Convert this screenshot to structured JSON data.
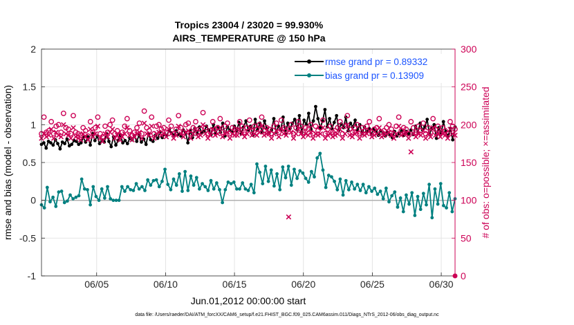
{
  "chart_data": {
    "type": "line",
    "title": "Tropics 23004 / 23020 = 99.930%",
    "subtitle": "AIRS_TEMPERATURE @ 150 hPa",
    "xlabel": "Jun.01,2012 00:00:00 start",
    "ylabel_left": "rmse and bias (model - observation)",
    "ylabel_right": "# of obs: o=possible; ×=assimilated",
    "xlim": [
      1,
      31
    ],
    "ylim_left": [
      -1,
      2
    ],
    "ylim_right": [
      0,
      300
    ],
    "x_ticks": [
      5,
      10,
      15,
      20,
      25,
      30
    ],
    "x_tick_labels": [
      "06/05",
      "06/10",
      "06/15",
      "06/20",
      "06/25",
      "06/30"
    ],
    "y_left_ticks": [
      "-1",
      "-0.5",
      "0",
      "0.5",
      "1",
      "1.5",
      "2"
    ],
    "y_right_ticks": [
      "0",
      "50",
      "100",
      "150",
      "200",
      "250",
      "300"
    ],
    "legend_location": "top-right",
    "series": [
      {
        "name": "rmse grand pr = 0.89332",
        "color": "#000000",
        "axis": "left",
        "values": [
          0.74,
          0.76,
          0.69,
          0.78,
          0.76,
          0.73,
          0.8,
          0.75,
          0.68,
          0.77,
          0.75,
          0.81,
          0.72,
          0.74,
          0.79,
          0.78,
          0.74,
          0.76,
          0.83,
          0.77,
          0.84,
          0.73,
          0.88,
          0.79,
          0.85,
          0.75,
          0.8,
          0.77,
          0.88,
          0.78,
          0.71,
          0.84,
          0.73,
          0.79,
          0.86,
          0.76,
          0.79,
          0.75,
          0.82,
          0.8,
          0.85,
          0.78,
          0.86,
          0.77,
          0.81,
          0.74,
          0.88,
          0.8,
          0.78,
          0.86,
          0.82,
          0.9,
          0.83,
          0.87,
          0.86,
          0.93,
          0.89,
          0.86,
          0.92,
          0.87,
          0.85,
          0.93,
          0.9,
          0.76,
          0.92,
          0.83,
          0.95,
          0.88,
          0.97,
          0.89,
          0.91,
          0.98,
          0.93,
          0.87,
          1.0,
          0.89,
          0.96,
          0.9,
          1.02,
          0.85,
          0.97,
          0.93,
          0.9,
          0.98,
          0.92,
          1.03,
          0.88,
          0.97,
          1.05,
          0.93,
          0.98,
          0.86,
          1.07,
          0.93,
          1.02,
          0.9,
          1.05,
          0.95,
          0.89,
          0.93,
          1.08,
          0.9,
          0.98,
          0.93,
          1.1,
          0.88,
          1.02,
          0.95,
          1.02,
          1.07,
          0.93,
          1.12,
          0.9,
          1.06,
          1.0,
          1.15,
          0.94,
          1.05,
          1.24,
          1.08,
          0.96,
          1.05,
          1.2,
          0.97,
          1.08,
          0.95,
          1.03,
          1.12,
          0.93,
          1.01,
          0.96,
          1.1,
          0.92,
          1.02,
          0.97,
          1.06,
          0.93,
          1.0,
          0.88,
          0.97,
          0.91,
          0.95,
          0.88,
          0.94,
          0.92,
          0.86,
          0.92,
          0.89,
          0.85,
          0.9,
          0.87,
          0.83,
          0.91,
          0.85,
          0.88,
          0.92,
          0.86,
          0.91,
          0.88,
          0.93,
          0.87,
          0.98,
          0.9,
          1.02,
          0.93,
          0.97,
          1.07,
          0.87,
          0.95,
          1.0,
          0.82,
          0.96,
          0.88,
          1.04,
          0.91,
          0.85,
          0.95,
          0.8,
          0.97
        ]
      },
      {
        "name": "bias grand pr = 0.13909",
        "color": "#008080",
        "axis": "left",
        "values": [
          -0.06,
          -0.1,
          0.17,
          -0.02,
          0.04,
          -0.08,
          0.11,
          0.12,
          -0.03,
          -0.01,
          0.07,
          0.02,
          0.04,
          0.06,
          0.28,
          0.15,
          0.14,
          -0.06,
          0.18,
          0.05,
          0.0,
          0.15,
          0.03,
          0.18,
          0.02,
          0.0,
          0.0,
          0.0,
          0.18,
          0.12,
          0.18,
          0.14,
          0.13,
          0.22,
          0.15,
          0.18,
          0.13,
          0.27,
          0.2,
          0.26,
          0.27,
          0.18,
          0.25,
          0.41,
          0.21,
          0.14,
          0.28,
          0.2,
          0.35,
          0.12,
          0.38,
          0.13,
          0.32,
          0.2,
          0.3,
          0.15,
          0.22,
          0.18,
          0.13,
          0.26,
          0.15,
          0.23,
          0.14,
          -0.03,
          0.14,
          0.24,
          0.22,
          0.24,
          0.15,
          0.15,
          0.23,
          0.15,
          0.13,
          0.21,
          0.1,
          0.48,
          0.37,
          0.22,
          0.45,
          0.25,
          0.4,
          0.19,
          0.35,
          0.14,
          0.44,
          0.3,
          0.45,
          0.2,
          0.41,
          0.29,
          0.39,
          0.36,
          0.29,
          0.24,
          0.38,
          0.31,
          0.56,
          0.62,
          0.4,
          0.17,
          0.33,
          0.31,
          0.25,
          0.14,
          0.28,
          0.07,
          0.26,
          0.14,
          0.24,
          0.15,
          0.21,
          0.13,
          0.21,
          0.1,
          0.18,
          0.12,
          0.16,
          0.08,
          0.12,
          0.02,
          0.16,
          -0.02,
          0.06,
          0.11,
          -0.09,
          0.03,
          -0.15,
          0.07,
          -0.05,
          0.1,
          -0.2,
          0.05,
          -0.12,
          0.09,
          -0.06,
          0.21,
          -0.23,
          0.15,
          -0.05,
          0.22,
          -0.07,
          -0.1,
          0.1,
          -0.15,
          0.02
        ]
      },
      {
        "name": "# of obs possible",
        "color": "#cc0055",
        "axis": "right",
        "marker": "o",
        "values": [
          188,
          210,
          190,
          192,
          204,
          188,
          198,
          200,
          190,
          215,
          196,
          194,
          188,
          212,
          190,
          188,
          186,
          196,
          192,
          185,
          204,
          190,
          196,
          210,
          188,
          184,
          198,
          190,
          200,
          206,
          188,
          192,
          186,
          190,
          198,
          208,
          192,
          186,
          190,
          196,
          202,
          188,
          218,
          196,
          192,
          210,
          188,
          198,
          200,
          194,
          196,
          190,
          206,
          198,
          188,
          194,
          212,
          196,
          190,
          200,
          202,
          188,
          196,
          204,
          190,
          194,
          216,
          196,
          188,
          192,
          204,
          194,
          196,
          208,
          190,
          198,
          202,
          188,
          196,
          194,
          192,
          204,
          198,
          190,
          196,
          206,
          192,
          198,
          194,
          200,
          210,
          192,
          196,
          194,
          188,
          198,
          202,
          190,
          206,
          196,
          192,
          194,
          200,
          188,
          196,
          204,
          198,
          190,
          196,
          194,
          200,
          188,
          198,
          192,
          196,
          206,
          188,
          194,
          198,
          190,
          192,
          196,
          204,
          188,
          198,
          212,
          194,
          190,
          196,
          200,
          188,
          196,
          192,
          198,
          204,
          190,
          194,
          196,
          208,
          190,
          192,
          196,
          200,
          194,
          188,
          198,
          210,
          192,
          196,
          194,
          188,
          204,
          196,
          190,
          198,
          192,
          202,
          188,
          196,
          190,
          208,
          194,
          198,
          190,
          196,
          192,
          188,
          204,
          198,
          194
        ]
      },
      {
        "name": "# of obs assimilated",
        "color": "#cc0055",
        "axis": "right",
        "marker": "x",
        "values": [
          182,
          188,
          184,
          186,
          194,
          182,
          190,
          186,
          184,
          200,
          188,
          186,
          182,
          196,
          184,
          182,
          180,
          188,
          184,
          180,
          194,
          184,
          188,
          198,
          182,
          178,
          188,
          184,
          190,
          194,
          182,
          186,
          180,
          184,
          188,
          196,
          186,
          180,
          184,
          188,
          190,
          182,
          202,
          188,
          186,
          198,
          182,
          188,
          190,
          186,
          188,
          184,
          194,
          188,
          182,
          186,
          198,
          188,
          184,
          190,
          192,
          182,
          188,
          194,
          184,
          186,
          200,
          188,
          182,
          186,
          194,
          186,
          188,
          196,
          184,
          188,
          190,
          182,
          188,
          186,
          186,
          194,
          188,
          184,
          188,
          196,
          186,
          188,
          186,
          190,
          198,
          186,
          188,
          188,
          182,
          188,
          192,
          184,
          194,
          188,
          186,
          78,
          190,
          182,
          188,
          194,
          188,
          184,
          188,
          186,
          190,
          182,
          188,
          186,
          188,
          196,
          182,
          186,
          188,
          184,
          186,
          188,
          194,
          182,
          188,
          200,
          186,
          184,
          188,
          190,
          182,
          188,
          186,
          188,
          192,
          184,
          186,
          188,
          196,
          184,
          186,
          188,
          190,
          186,
          182,
          188,
          198,
          186,
          188,
          188,
          182,
          164,
          188,
          184,
          188,
          186,
          192,
          182,
          188,
          184,
          196,
          186,
          188,
          184,
          188,
          186,
          182,
          194,
          188,
          186
        ]
      }
    ]
  },
  "footer": "data file: /Users/raeder/DAI/ATM_forcXX/CAM6_setup/f.e21.FHIST_BGC.f09_025.CAM6assim.011/Diags_NTrS_2012-06/obs_diag_output.nc"
}
